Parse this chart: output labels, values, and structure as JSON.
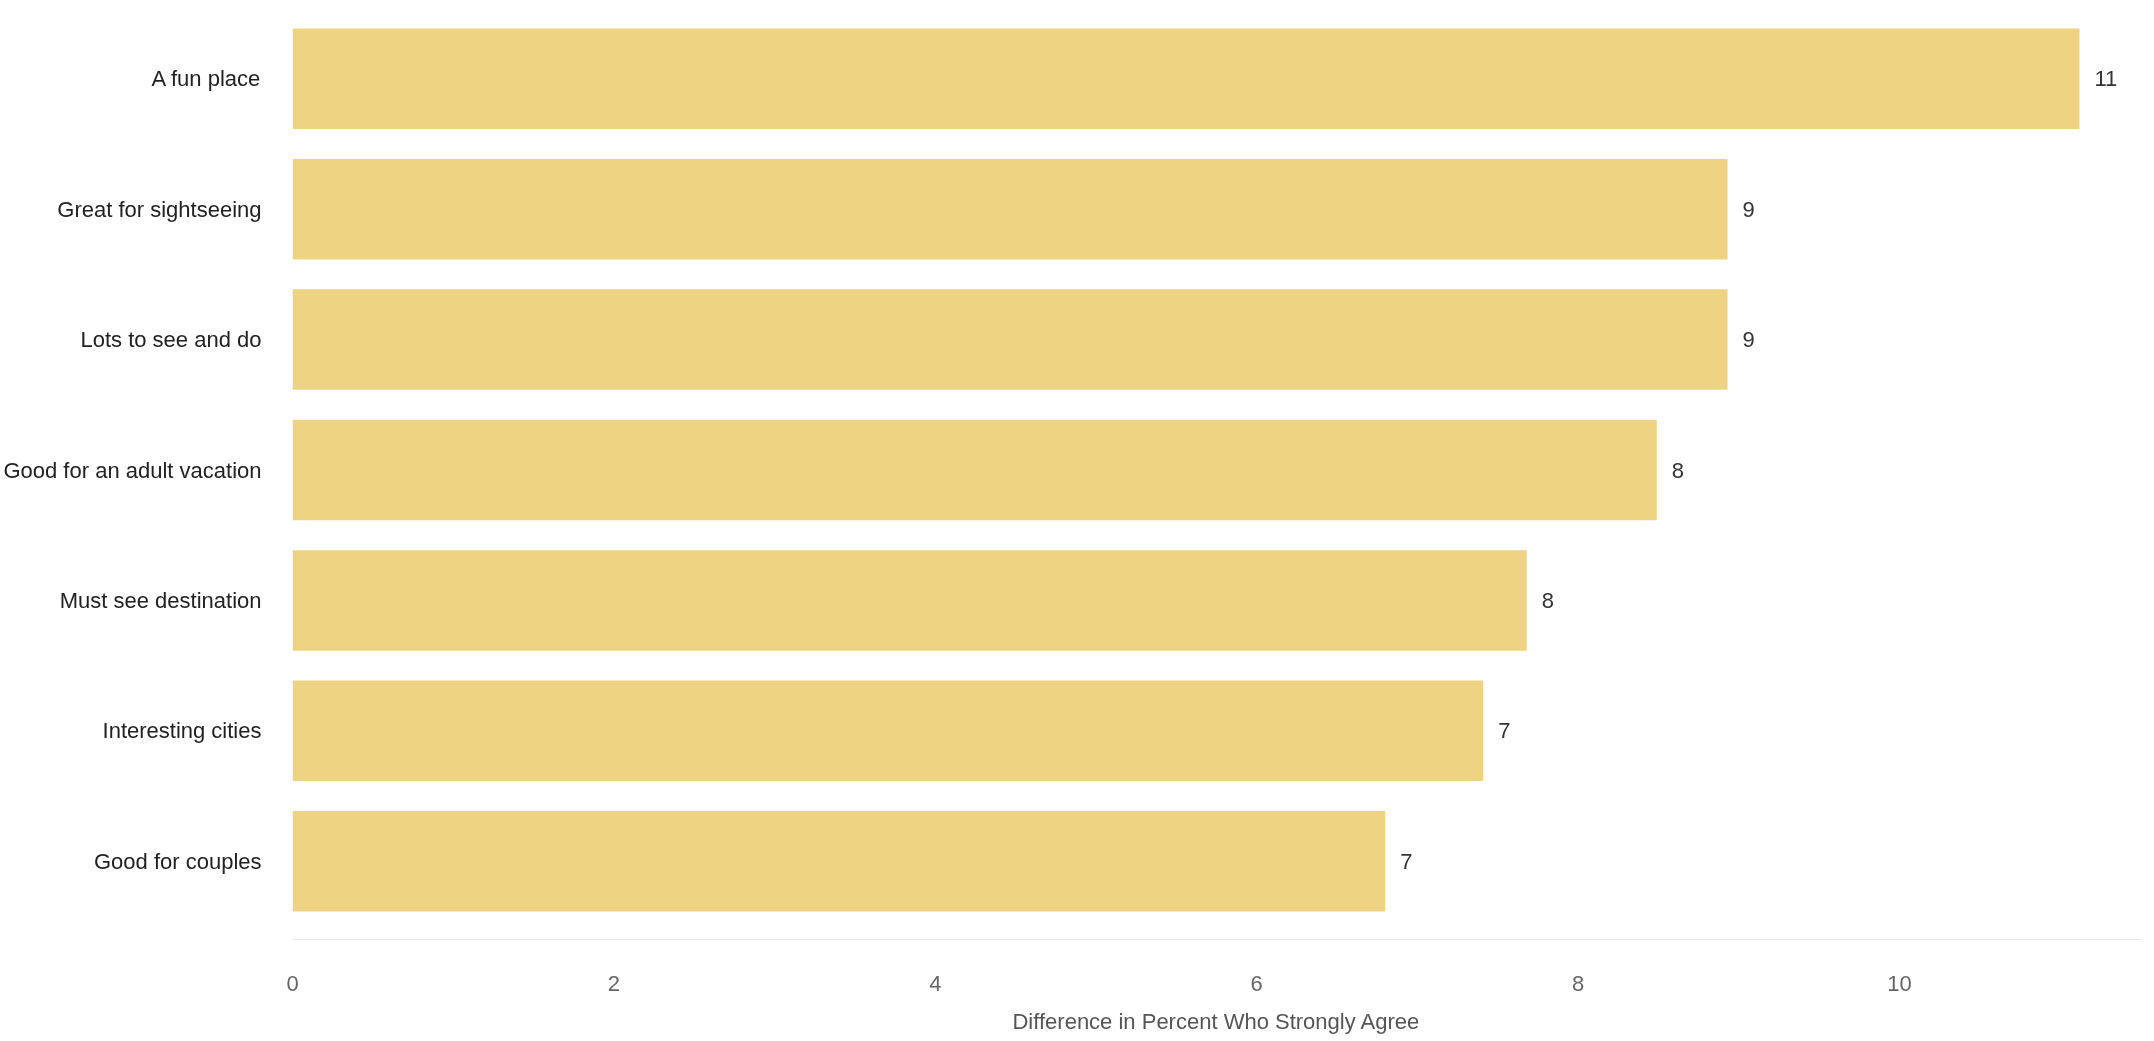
{
  "chart_data": {
    "type": "bar",
    "orientation": "horizontal",
    "xlabel": "Difference in Percent Who Strongly Agree",
    "categories": [
      "A fun place",
      "Great for sightseeing",
      "Lots to see and do",
      "Good for an adult vacation",
      "Must see destination",
      "Interesting cities",
      "Good for couples"
    ],
    "values": [
      11.12,
      8.93,
      8.93,
      8.49,
      7.68,
      7.41,
      6.8
    ],
    "value_labels": [
      "11",
      "9",
      "9",
      "8",
      "8",
      "7",
      "7"
    ],
    "color": "#eed482",
    "xlim": [
      0,
      11.5
    ],
    "xticks": [
      0,
      2,
      4,
      6,
      8,
      10
    ],
    "grid": false
  }
}
